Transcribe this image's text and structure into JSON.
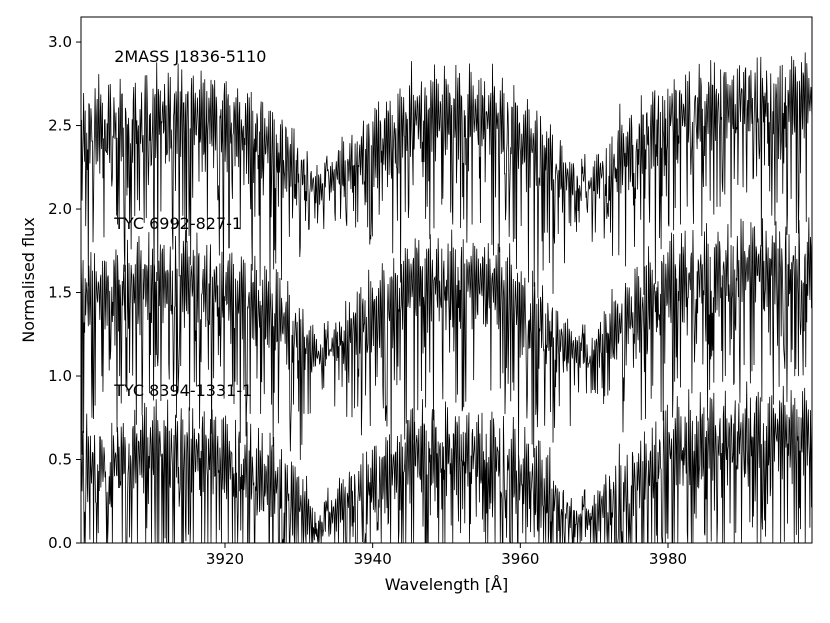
{
  "chart_data": {
    "type": "line",
    "xlabel": "Wavelength [Å]",
    "ylabel": "Normalised flux",
    "xlim": [
      3900.5,
      3999.5
    ],
    "ylim": [
      0.0,
      3.15
    ],
    "x_ticks": [
      3920,
      3940,
      3960,
      3980
    ],
    "x_tick_labels": [
      "3920",
      "3940",
      "3960",
      "3980"
    ],
    "y_ticks": [
      0.0,
      0.5,
      1.0,
      1.5,
      2.0,
      2.5,
      3.0
    ],
    "y_tick_labels": [
      "0.0",
      "0.5",
      "1.0",
      "1.5",
      "2.0",
      "2.5",
      "3.0"
    ],
    "grid": false,
    "line_color": "#000000",
    "series": [
      {
        "name": "2MASS J1836-5110",
        "label_position_data": [
          3905,
          2.88
        ],
        "x": [
          3900,
          3905,
          3910,
          3915,
          3920,
          3925,
          3930,
          3932,
          3933.7,
          3935,
          3940,
          3944,
          3945,
          3950,
          3955,
          3958,
          3960,
          3962,
          3965,
          3968.5,
          3970,
          3975,
          3980,
          3985,
          3990,
          3995,
          4000
        ],
        "y": [
          2.4,
          2.45,
          2.5,
          2.5,
          2.45,
          2.35,
          2.2,
          2.12,
          2.1,
          2.2,
          2.3,
          2.4,
          2.5,
          2.5,
          2.5,
          2.45,
          2.35,
          2.3,
          2.2,
          2.1,
          2.15,
          2.3,
          2.5,
          2.55,
          2.6,
          2.6,
          2.6
        ]
      },
      {
        "name": "TYC 6992-827-1",
        "label_position_data": [
          3905,
          1.88
        ],
        "x": [
          3900,
          3905,
          3910,
          3915,
          3920,
          3925,
          3930,
          3932,
          3933.7,
          3935,
          3940,
          3944,
          3945,
          3950,
          3955,
          3958,
          3960,
          3962,
          3965,
          3968.5,
          3970,
          3975,
          3980,
          3985,
          3990,
          3995,
          4000
        ],
        "y": [
          1.4,
          1.45,
          1.5,
          1.5,
          1.45,
          1.35,
          1.2,
          1.12,
          1.08,
          1.2,
          1.3,
          1.4,
          1.5,
          1.5,
          1.5,
          1.45,
          1.35,
          1.3,
          1.2,
          1.1,
          1.15,
          1.3,
          1.5,
          1.55,
          1.6,
          1.6,
          1.6
        ]
      },
      {
        "name": "TYC 8394-1331-1",
        "label_position_data": [
          3905,
          0.88
        ],
        "x": [
          3900,
          3905,
          3910,
          3915,
          3920,
          3925,
          3930,
          3932,
          3933.7,
          3935,
          3940,
          3944,
          3945,
          3950,
          3955,
          3958,
          3960,
          3962,
          3965,
          3968.5,
          3970,
          3975,
          3980,
          3985,
          3990,
          3995,
          4000
        ],
        "y": [
          0.4,
          0.45,
          0.5,
          0.5,
          0.45,
          0.35,
          0.2,
          0.12,
          0.05,
          0.2,
          0.3,
          0.4,
          0.5,
          0.5,
          0.5,
          0.45,
          0.35,
          0.3,
          0.2,
          0.1,
          0.15,
          0.3,
          0.5,
          0.55,
          0.6,
          0.6,
          0.6
        ]
      }
    ]
  }
}
